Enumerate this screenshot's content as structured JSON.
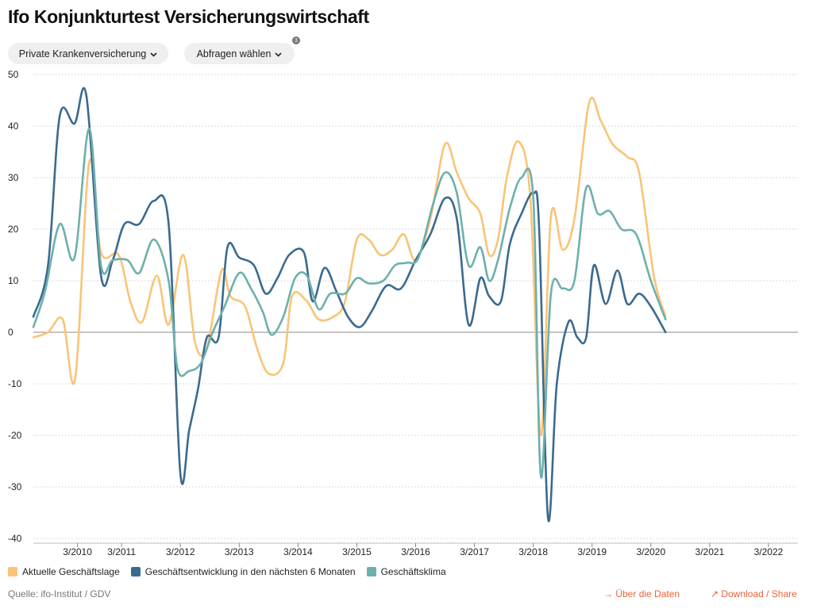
{
  "title": "Ifo Konjunkturtest Versicherungswirtschaft",
  "controls": {
    "segment_select": "Private Krankenversicherung",
    "query_select": "Abfragen wählen",
    "query_badge": "3"
  },
  "footer": {
    "source": "Quelle: ifo-Institut / GDV",
    "data_link": "Über die Daten",
    "download_link": "Download / Share"
  },
  "icons": [
    "chevron-down-icon",
    "arrow-right-icon",
    "arrow-up-right-icon"
  ],
  "colors": {
    "aktuelle_lage": "#f9c477",
    "erwartungen": "#3b6a8f",
    "klima": "#6db0ac",
    "link": "#e8633c"
  },
  "chart_data": {
    "type": "line",
    "y_ticks": [
      50,
      40,
      30,
      20,
      10,
      0,
      -10,
      -20,
      -30,
      -40
    ],
    "ylim": [
      -40,
      50
    ],
    "xlim": [
      2009.25,
      2022.25
    ],
    "x_ticks": [
      {
        "value": 2010.0,
        "label": "3/2010"
      },
      {
        "value": 2010.75,
        "label": "3/2011"
      },
      {
        "value": 2011.75,
        "label": "3/2012"
      },
      {
        "value": 2012.75,
        "label": "3/2013"
      },
      {
        "value": 2013.75,
        "label": "3/2014"
      },
      {
        "value": 2014.75,
        "label": "3/2015"
      },
      {
        "value": 2015.75,
        "label": "3/2016"
      },
      {
        "value": 2016.75,
        "label": "3/2017"
      },
      {
        "value": 2017.75,
        "label": "3/2018"
      },
      {
        "value": 2018.75,
        "label": "3/2019"
      },
      {
        "value": 2019.75,
        "label": "3/2020"
      },
      {
        "value": 2020.75,
        "label": "3/2021"
      },
      {
        "value": 2021.75,
        "label": "3/2022"
      }
    ],
    "grid": true,
    "zero_line": true,
    "legend_position": "bottom-left",
    "series": [
      {
        "name": "Aktuelle Geschäftslage",
        "color": "#f9c477",
        "points": [
          [
            2009.25,
            -1
          ],
          [
            2009.5,
            0
          ],
          [
            2009.75,
            2.5
          ],
          [
            2009.96,
            -9
          ],
          [
            2010.2,
            33
          ],
          [
            2010.4,
            15.5
          ],
          [
            2010.7,
            15
          ],
          [
            2010.9,
            6
          ],
          [
            2011.1,
            2
          ],
          [
            2011.35,
            11
          ],
          [
            2011.55,
            1.5
          ],
          [
            2011.8,
            15
          ],
          [
            2012.0,
            -2
          ],
          [
            2012.2,
            -3
          ],
          [
            2012.45,
            12
          ],
          [
            2012.6,
            7
          ],
          [
            2012.85,
            5
          ],
          [
            2013.05,
            -3
          ],
          [
            2013.25,
            -8
          ],
          [
            2013.5,
            -6
          ],
          [
            2013.65,
            7
          ],
          [
            2013.9,
            6
          ],
          [
            2014.1,
            2.5
          ],
          [
            2014.35,
            3
          ],
          [
            2014.55,
            6
          ],
          [
            2014.75,
            18
          ],
          [
            2014.95,
            18
          ],
          [
            2015.15,
            15
          ],
          [
            2015.35,
            16
          ],
          [
            2015.55,
            19
          ],
          [
            2015.75,
            14
          ],
          [
            2016.0,
            22
          ],
          [
            2016.25,
            36.5
          ],
          [
            2016.45,
            31
          ],
          [
            2016.65,
            26
          ],
          [
            2016.85,
            23
          ],
          [
            2017.0,
            15
          ],
          [
            2017.15,
            18
          ],
          [
            2017.3,
            30
          ],
          [
            2017.5,
            37
          ],
          [
            2017.7,
            26
          ],
          [
            2017.88,
            -20
          ],
          [
            2018.05,
            22.5
          ],
          [
            2018.25,
            16
          ],
          [
            2018.45,
            22
          ],
          [
            2018.7,
            44.5
          ],
          [
            2018.9,
            41
          ],
          [
            2019.1,
            36.5
          ],
          [
            2019.35,
            34
          ],
          [
            2019.55,
            31
          ],
          [
            2019.8,
            11
          ],
          [
            2020.0,
            3
          ]
        ]
      },
      {
        "name": "Geschäftsentwicklung in den nächsten 6 Monaten",
        "color": "#3b6a8f",
        "points": [
          [
            2009.25,
            3
          ],
          [
            2009.5,
            13
          ],
          [
            2009.7,
            42
          ],
          [
            2009.95,
            40.5
          ],
          [
            2010.15,
            46
          ],
          [
            2010.4,
            11
          ],
          [
            2010.6,
            14
          ],
          [
            2010.8,
            21
          ],
          [
            2011.05,
            21
          ],
          [
            2011.3,
            25.5
          ],
          [
            2011.55,
            21
          ],
          [
            2011.75,
            -27.5
          ],
          [
            2011.9,
            -19
          ],
          [
            2012.05,
            -11
          ],
          [
            2012.2,
            -1
          ],
          [
            2012.4,
            -1
          ],
          [
            2012.55,
            16.5
          ],
          [
            2012.75,
            14.5
          ],
          [
            2013.0,
            13
          ],
          [
            2013.2,
            7.5
          ],
          [
            2013.4,
            10.5
          ],
          [
            2013.6,
            15
          ],
          [
            2013.85,
            15.5
          ],
          [
            2014.0,
            6
          ],
          [
            2014.2,
            12.5
          ],
          [
            2014.4,
            8
          ],
          [
            2014.6,
            3
          ],
          [
            2014.8,
            1
          ],
          [
            2015.0,
            4
          ],
          [
            2015.25,
            9
          ],
          [
            2015.5,
            8.5
          ],
          [
            2015.75,
            14
          ],
          [
            2016.0,
            19
          ],
          [
            2016.25,
            26
          ],
          [
            2016.45,
            22
          ],
          [
            2016.65,
            1.5
          ],
          [
            2016.85,
            10.5
          ],
          [
            2017.0,
            7
          ],
          [
            2017.2,
            6
          ],
          [
            2017.35,
            17
          ],
          [
            2017.55,
            23
          ],
          [
            2017.75,
            27
          ],
          [
            2017.85,
            20
          ],
          [
            2018.0,
            -36
          ],
          [
            2018.15,
            -10
          ],
          [
            2018.35,
            2
          ],
          [
            2018.5,
            -1
          ],
          [
            2018.65,
            -1
          ],
          [
            2018.78,
            13
          ],
          [
            2018.98,
            5.5
          ],
          [
            2019.18,
            12
          ],
          [
            2019.35,
            5.5
          ],
          [
            2019.55,
            7.5
          ],
          [
            2019.75,
            5
          ],
          [
            2020.0,
            0
          ]
        ]
      },
      {
        "name": "Geschäftsklima",
        "color": "#6db0ac",
        "points": [
          [
            2009.25,
            1
          ],
          [
            2009.45,
            8
          ],
          [
            2009.7,
            21
          ],
          [
            2009.95,
            14.5
          ],
          [
            2010.2,
            39.5
          ],
          [
            2010.4,
            13
          ],
          [
            2010.6,
            14
          ],
          [
            2010.85,
            14
          ],
          [
            2011.05,
            11.5
          ],
          [
            2011.3,
            18
          ],
          [
            2011.55,
            10
          ],
          [
            2011.7,
            -7
          ],
          [
            2011.9,
            -7.5
          ],
          [
            2012.1,
            -6
          ],
          [
            2012.3,
            0
          ],
          [
            2012.5,
            5
          ],
          [
            2012.75,
            11.5
          ],
          [
            2012.95,
            8.5
          ],
          [
            2013.15,
            4
          ],
          [
            2013.3,
            -0.5
          ],
          [
            2013.5,
            3
          ],
          [
            2013.7,
            10.5
          ],
          [
            2013.9,
            11
          ],
          [
            2014.1,
            4.5
          ],
          [
            2014.3,
            7.5
          ],
          [
            2014.55,
            7.5
          ],
          [
            2014.75,
            10.5
          ],
          [
            2014.95,
            9.5
          ],
          [
            2015.2,
            10
          ],
          [
            2015.4,
            13
          ],
          [
            2015.6,
            13.5
          ],
          [
            2015.8,
            14.5
          ],
          [
            2016.05,
            25
          ],
          [
            2016.25,
            31
          ],
          [
            2016.45,
            27
          ],
          [
            2016.65,
            13
          ],
          [
            2016.85,
            16.5
          ],
          [
            2017.0,
            10
          ],
          [
            2017.15,
            14
          ],
          [
            2017.35,
            24
          ],
          [
            2017.55,
            30
          ],
          [
            2017.75,
            26
          ],
          [
            2017.88,
            -28
          ],
          [
            2018.05,
            7.5
          ],
          [
            2018.25,
            8.5
          ],
          [
            2018.45,
            10
          ],
          [
            2018.65,
            28
          ],
          [
            2018.85,
            23
          ],
          [
            2019.05,
            23.5
          ],
          [
            2019.25,
            20
          ],
          [
            2019.5,
            19
          ],
          [
            2019.75,
            10
          ],
          [
            2020.0,
            2.5
          ]
        ]
      }
    ]
  }
}
